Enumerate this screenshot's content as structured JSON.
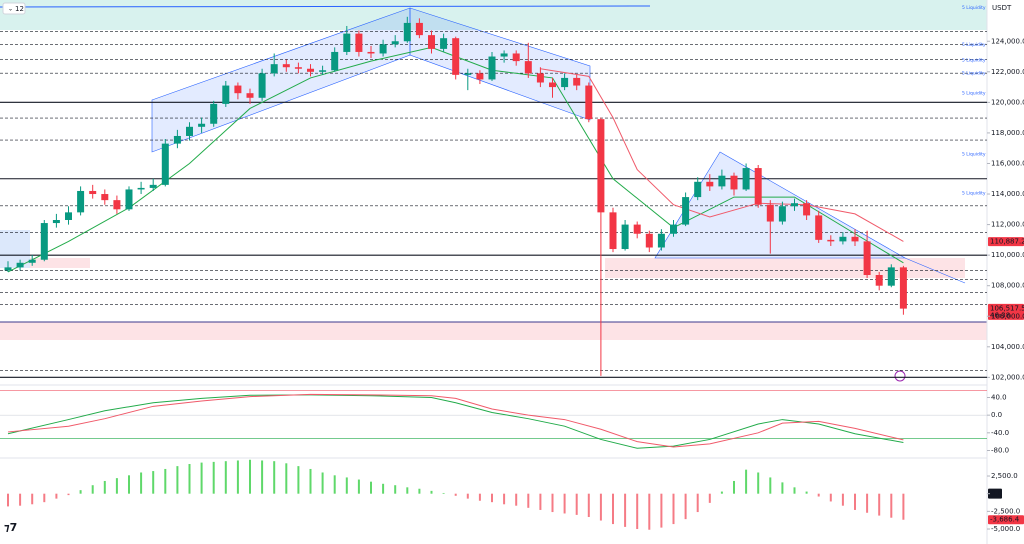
{
  "chart_data": [
    {
      "type": "candlestick",
      "interval": "12",
      "currency": "USDT",
      "up_color": "#089981",
      "down_color": "#f23645",
      "ylim": [
        101500,
        126700
      ],
      "yticks": [
        {
          "value": 102000,
          "label": "102,000.0"
        },
        {
          "value": 104000,
          "label": "104,000.0"
        },
        {
          "value": 106000,
          "label": "106,000.0"
        },
        {
          "value": 108000,
          "label": "108,000.0"
        },
        {
          "value": 110000,
          "label": "110,000.0"
        },
        {
          "value": 112000,
          "label": "112,000.0"
        },
        {
          "value": 114000,
          "label": "114,000.0"
        },
        {
          "value": 116000,
          "label": "116,000.0"
        },
        {
          "value": 118000,
          "label": "118,000.0"
        },
        {
          "value": 120000,
          "label": "120,000.0"
        },
        {
          "value": 122000,
          "label": "122,000.0"
        },
        {
          "value": 124000,
          "label": "124,000.0"
        }
      ],
      "ohlc": [
        [
          109000,
          109600,
          108900,
          109200
        ],
        [
          109200,
          109700,
          109000,
          109500
        ],
        [
          109500,
          110000,
          109300,
          109700
        ],
        [
          109700,
          112300,
          109600,
          112100
        ],
        [
          112100,
          112700,
          111800,
          112300
        ],
        [
          112300,
          113200,
          112000,
          112800
        ],
        [
          112800,
          114500,
          112600,
          114200
        ],
        [
          114200,
          114600,
          113700,
          114000
        ],
        [
          114000,
          114300,
          113300,
          113600
        ],
        [
          113600,
          113900,
          112700,
          113000
        ],
        [
          113000,
          114500,
          112900,
          114300
        ],
        [
          114300,
          114800,
          114000,
          114400
        ],
        [
          114400,
          115000,
          114200,
          114600
        ],
        [
          114600,
          117600,
          114500,
          117300
        ],
        [
          117300,
          118200,
          117000,
          117800
        ],
        [
          117800,
          118700,
          117500,
          118400
        ],
        [
          118400,
          119000,
          118000,
          118600
        ],
        [
          118600,
          120100,
          118400,
          119900
        ],
        [
          119900,
          121400,
          119700,
          121100
        ],
        [
          121100,
          121300,
          120200,
          120600
        ],
        [
          120600,
          120900,
          119900,
          120300
        ],
        [
          120300,
          122200,
          120100,
          121900
        ],
        [
          121900,
          123200,
          121700,
          122500
        ],
        [
          122500,
          122800,
          122000,
          122300
        ],
        [
          122300,
          122600,
          121900,
          122200
        ],
        [
          122200,
          122500,
          121700,
          122000
        ],
        [
          122000,
          122400,
          121800,
          122100
        ],
        [
          122100,
          123600,
          122000,
          123300
        ],
        [
          123300,
          125000,
          123100,
          124500
        ],
        [
          124500,
          124700,
          123000,
          123300
        ],
        [
          123300,
          123700,
          122900,
          123200
        ],
        [
          123200,
          124100,
          123000,
          123800
        ],
        [
          123800,
          124400,
          123600,
          124000
        ],
        [
          124000,
          125600,
          123900,
          125200
        ],
        [
          125200,
          125500,
          124200,
          124400
        ],
        [
          124400,
          124700,
          123200,
          123500
        ],
        [
          123500,
          124500,
          123300,
          124200
        ],
        [
          124200,
          124300,
          121500,
          121800
        ],
        [
          121800,
          122200,
          120800,
          121900
        ],
        [
          121900,
          122100,
          121200,
          121500
        ],
        [
          121500,
          123300,
          121400,
          123000
        ],
        [
          123000,
          123400,
          122600,
          123200
        ],
        [
          123200,
          123400,
          122400,
          122700
        ],
        [
          122700,
          123900,
          121600,
          121900
        ],
        [
          121900,
          122300,
          121000,
          121300
        ],
        [
          121300,
          121600,
          120300,
          121000
        ],
        [
          121000,
          121900,
          120800,
          121600
        ],
        [
          121600,
          121800,
          120800,
          121100
        ],
        [
          121100,
          121300,
          118700,
          118900
        ],
        [
          118900,
          119000,
          102100,
          112800
        ],
        [
          112800,
          113100,
          110200,
          110400
        ],
        [
          110400,
          112300,
          110300,
          112000
        ],
        [
          112000,
          112200,
          111100,
          111400
        ],
        [
          111400,
          111600,
          110200,
          110500
        ],
        [
          110500,
          111700,
          110300,
          111400
        ],
        [
          111400,
          112300,
          111200,
          112000
        ],
        [
          112000,
          114100,
          111900,
          113800
        ],
        [
          113800,
          115100,
          113600,
          114800
        ],
        [
          114800,
          115300,
          114200,
          114500
        ],
        [
          114500,
          115600,
          114300,
          115200
        ],
        [
          115200,
          115400,
          113900,
          114300
        ],
        [
          114300,
          116000,
          114200,
          115700
        ],
        [
          115700,
          115900,
          113100,
          113300
        ],
        [
          113300,
          113600,
          110100,
          112200
        ],
        [
          112200,
          113500,
          112000,
          113200
        ],
        [
          113200,
          113700,
          112900,
          113400
        ],
        [
          113400,
          113600,
          112300,
          112600
        ],
        [
          112600,
          112900,
          110800,
          111000
        ],
        [
          111000,
          111300,
          110600,
          110900
        ],
        [
          110900,
          111500,
          110700,
          111200
        ],
        [
          111200,
          111700,
          110600,
          110900
        ],
        [
          110900,
          111600,
          108500,
          108700
        ],
        [
          108700,
          108900,
          107700,
          108000
        ],
        [
          108000,
          109400,
          107900,
          109200
        ],
        [
          109200,
          109300,
          106100,
          106500
        ]
      ],
      "overlays": [
        {
          "color": "#22ab4a",
          "x": [
            0,
            5,
            10,
            15,
            20,
            25,
            30,
            35,
            40,
            45,
            50,
            55,
            60,
            65,
            70,
            74
          ],
          "values": [
            108900,
            110900,
            113100,
            116000,
            119600,
            121600,
            122700,
            123600,
            122100,
            121600,
            115000,
            111800,
            113800,
            113800,
            111400,
            109500
          ]
        },
        {
          "color": "#f05a6a",
          "x": [
            44,
            48,
            50,
            52,
            55,
            58,
            62,
            66,
            70,
            74
          ],
          "values": [
            122200,
            121700,
            119000,
            115600,
            113300,
            112500,
            113400,
            113300,
            112700,
            110900
          ]
        }
      ],
      "levels": {
        "solid": [
          120000,
          115000,
          110000,
          102000
        ],
        "dashed": [
          124650,
          123800,
          122820,
          121910,
          118970,
          117530,
          113230,
          111470,
          108980,
          108400,
          107550,
          106770,
          102460
        ]
      },
      "annotations": [
        {
          "text": "5 Liquidity",
          "value": 126220
        },
        {
          "text": "5 Liquidity",
          "value": 123800
        },
        {
          "text": "5 Liquidity",
          "value": 122760
        },
        {
          "text": "5 Liquidity",
          "value": 121910
        },
        {
          "text": "5 Liquidity",
          "value": 120600
        },
        {
          "text": "5 Liquidity",
          "value": 116620
        },
        {
          "text": "5 Liquidity",
          "value": 114080
        }
      ],
      "price_labels": [
        {
          "value": 110887.2,
          "label": "110,887.2"
        },
        {
          "value": 106517.5,
          "label": "106,517.5",
          "countdown": "46:38"
        }
      ]
    },
    {
      "type": "line",
      "ylim": [
        -97,
        66
      ],
      "yticks": [
        {
          "value": 40,
          "label": "40.0"
        },
        {
          "value": 0,
          "label": "0.0"
        },
        {
          "value": -40,
          "label": "-40.0"
        },
        {
          "value": -80,
          "label": "-80.0"
        }
      ],
      "series": [
        {
          "color": "#22ab4a",
          "x": [
            0,
            5,
            8,
            12,
            16,
            20,
            25,
            30,
            35,
            37,
            40,
            43,
            46,
            49,
            52,
            55,
            58,
            62,
            64,
            67,
            70,
            74
          ],
          "values": [
            -42,
            -10,
            10,
            28,
            38,
            45,
            46,
            44,
            40,
            28,
            6,
            -8,
            -25,
            -55,
            -75,
            -70,
            -55,
            -20,
            -10,
            -20,
            -42,
            -62
          ]
        },
        {
          "color": "#f05a6a",
          "x": [
            0,
            5,
            8,
            12,
            16,
            20,
            25,
            30,
            35,
            37,
            40,
            43,
            46,
            49,
            52,
            55,
            58,
            62,
            64,
            67,
            70,
            74
          ],
          "values": [
            -38,
            -25,
            -8,
            20,
            32,
            42,
            47,
            46,
            44,
            38,
            14,
            0,
            -10,
            -32,
            -60,
            -72,
            -65,
            -40,
            -18,
            -14,
            -30,
            -56
          ]
        }
      ],
      "levels": [
        {
          "value": 56,
          "color": "#f05a6a"
        },
        {
          "value": -53,
          "color": "#22ab4a"
        }
      ]
    },
    {
      "type": "bar",
      "ylim": [
        -7120,
        5050
      ],
      "up_color": "#5fd86a",
      "down_color": "#f57b85",
      "yticks": [
        {
          "value": 2500,
          "label": "2,500.0"
        },
        {
          "value": 0,
          "label": "0.0"
        },
        {
          "value": -2500,
          "label": "-2,500.0"
        },
        {
          "value": -5000,
          "label": "-5,000.0"
        }
      ],
      "values": [
        -1800,
        -1700,
        -1500,
        -1200,
        -700,
        -200,
        500,
        1200,
        1800,
        2200,
        2600,
        3000,
        3200,
        3500,
        3900,
        4200,
        4400,
        4500,
        4600,
        4700,
        4800,
        4700,
        4600,
        4300,
        3900,
        3500,
        3000,
        2600,
        2300,
        2000,
        1700,
        1400,
        1200,
        900,
        700,
        400,
        100,
        -300,
        -700,
        -1000,
        -1200,
        -1500,
        -1700,
        -2000,
        -2300,
        -2600,
        -2800,
        -3000,
        -3300,
        -3800,
        -4300,
        -4700,
        -5000,
        -5100,
        -4800,
        -4300,
        -3600,
        -2600,
        -1300,
        300,
        1800,
        3400,
        3000,
        2300,
        1600,
        900,
        300,
        -400,
        -1100,
        -1700,
        -2300,
        -2700,
        -3100,
        -3400,
        -3686.4
      ],
      "last_label": "-3,686.4"
    }
  ]
}
